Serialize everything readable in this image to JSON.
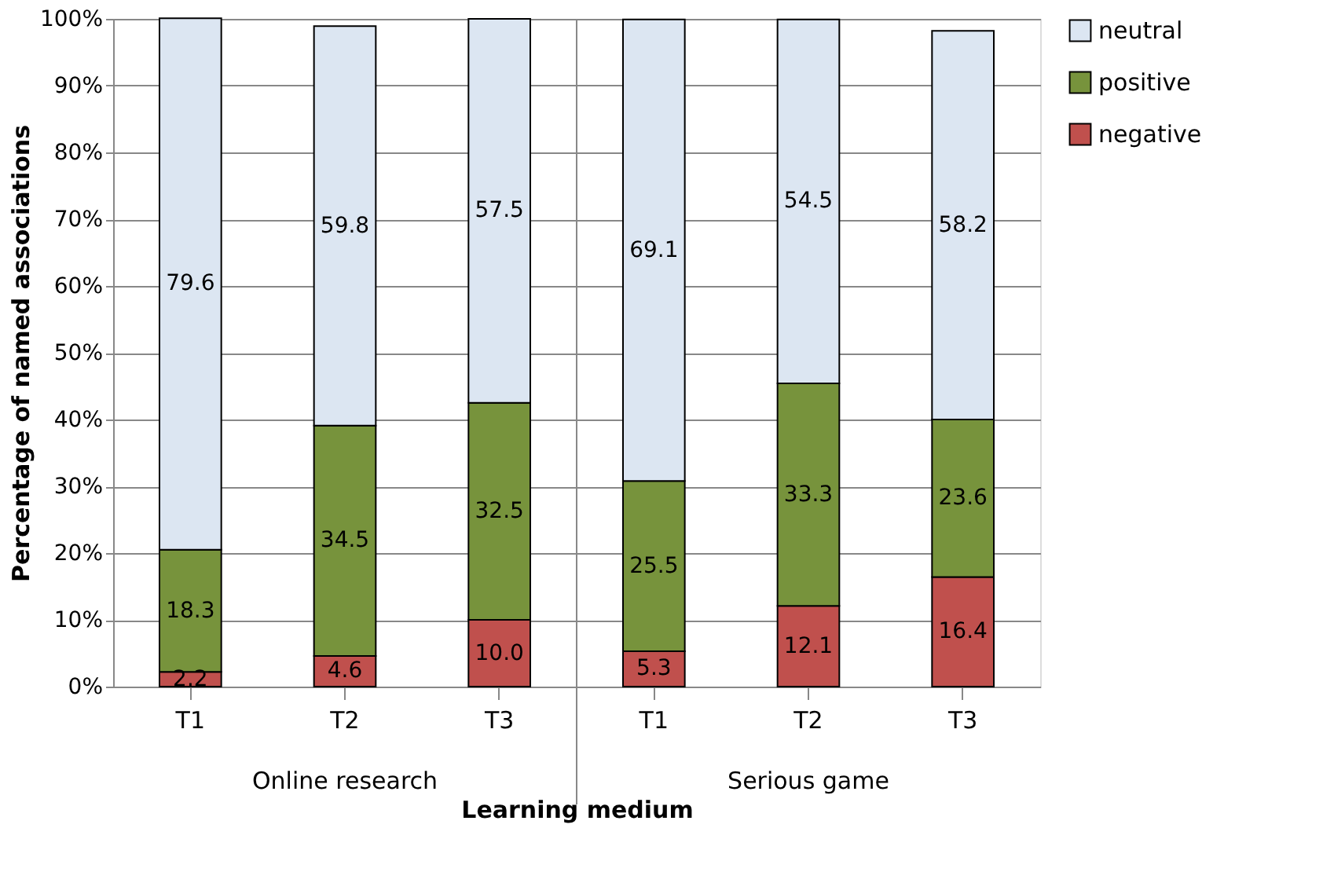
{
  "chart_data": {
    "type": "bar",
    "stacked": true,
    "xlabel": "Learning medium",
    "ylabel": "Percentage of named associations",
    "categories": [
      "T1",
      "T2",
      "T3",
      "T1",
      "T2",
      "T3"
    ],
    "annotations": [
      "Online research",
      "Serious game"
    ],
    "series": [
      {
        "name": "negative",
        "color": "#c0504d",
        "values": [
          2.2,
          4.6,
          10.0,
          5.3,
          12.1,
          16.4
        ],
        "value_labels": [
          "2.2",
          "4.6",
          "10.0",
          "5.3",
          "12.1",
          "16.4"
        ]
      },
      {
        "name": "positive",
        "color": "#77933c",
        "values": [
          18.3,
          34.5,
          32.5,
          25.5,
          33.3,
          23.6
        ],
        "value_labels": [
          "18.3",
          "34.5",
          "32.5",
          "25.5",
          "33.3",
          "23.6"
        ]
      },
      {
        "name": "neutral",
        "color": "#dce6f2",
        "values": [
          79.6,
          59.8,
          57.5,
          69.1,
          54.5,
          58.2
        ],
        "value_labels": [
          "79.6",
          "59.8",
          "57.5",
          "69.1",
          "54.5",
          "58.2"
        ]
      }
    ],
    "ylim": [
      0,
      100
    ],
    "yticks": [
      {
        "value": 0,
        "label": "0%"
      },
      {
        "value": 10,
        "label": "10%"
      },
      {
        "value": 20,
        "label": "20%"
      },
      {
        "value": 30,
        "label": "30%"
      },
      {
        "value": 40,
        "label": "40%"
      },
      {
        "value": 50,
        "label": "50%"
      },
      {
        "value": 60,
        "label": "60%"
      },
      {
        "value": 70,
        "label": "70%"
      },
      {
        "value": 80,
        "label": "80%"
      },
      {
        "value": 90,
        "label": "90%"
      },
      {
        "value": 100,
        "label": "100%"
      }
    ],
    "grid": "y",
    "legend": "right"
  }
}
